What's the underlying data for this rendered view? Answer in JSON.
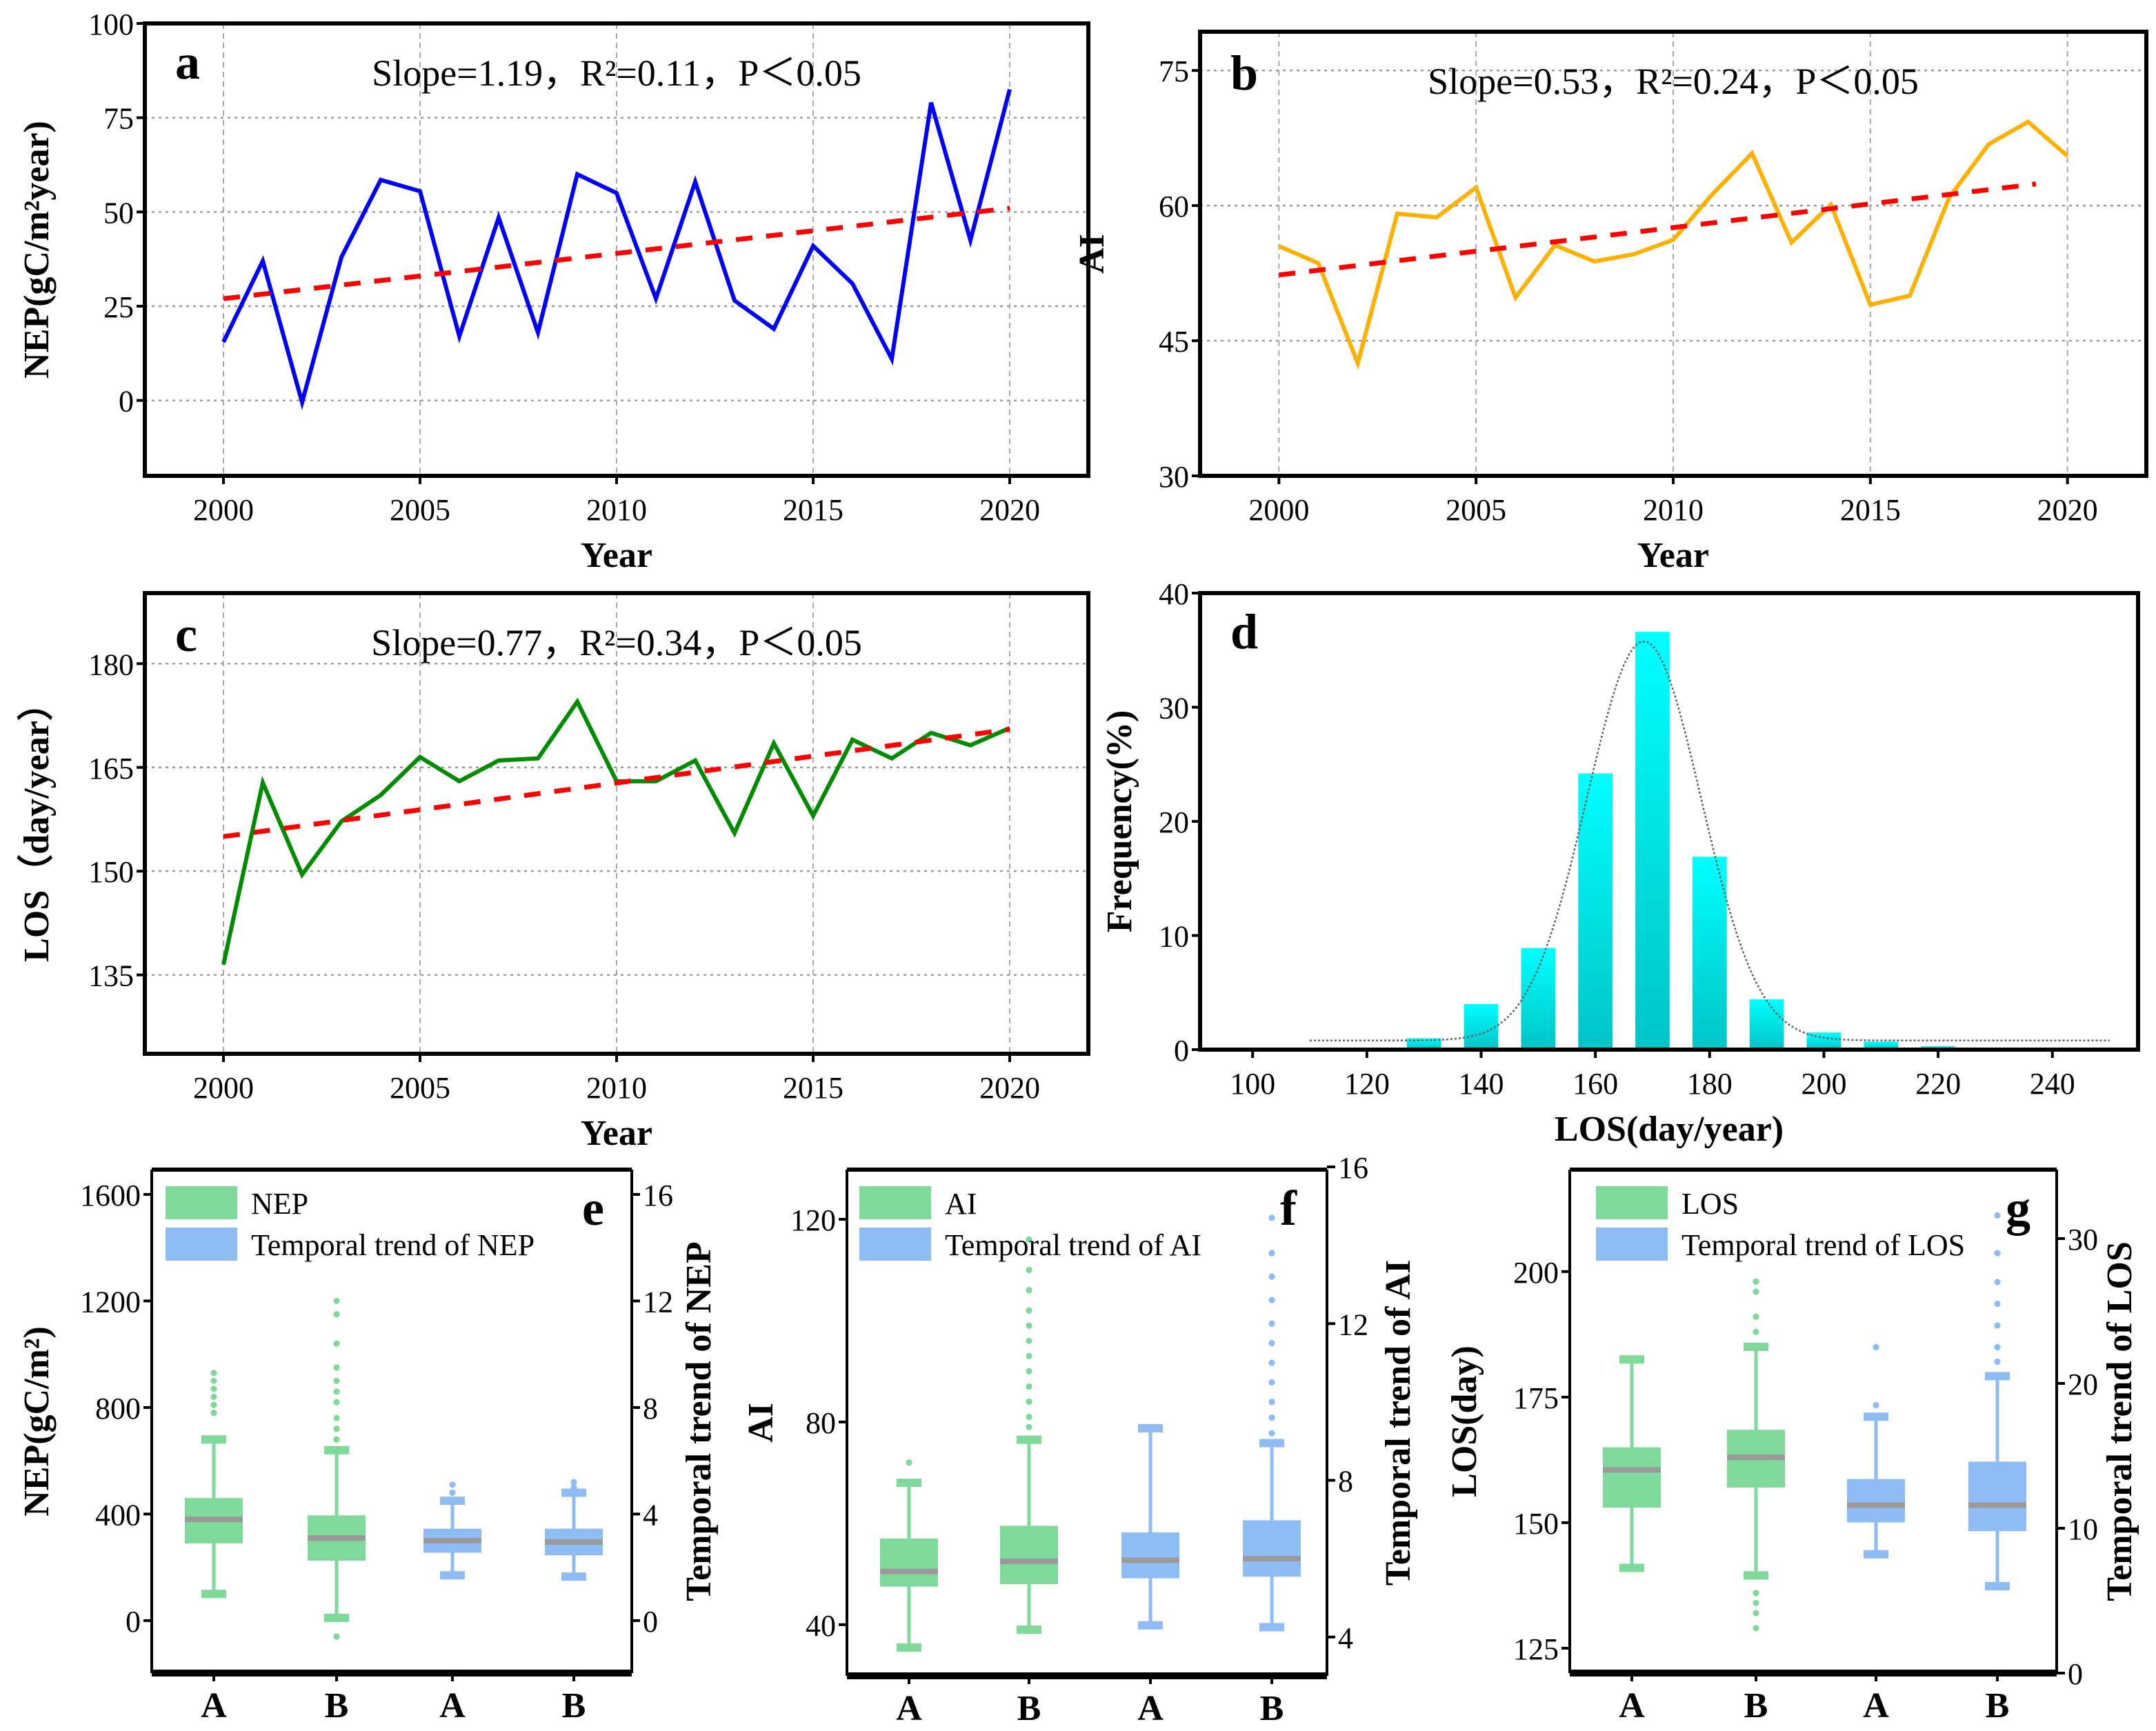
{
  "colors": {
    "nep": "#0000ff",
    "ai": "#ffb000",
    "los": "#008c00",
    "trend": "#ff0000",
    "hist": "#00f0f0",
    "green_box": "#7fd99a",
    "blue_box": "#8fbcf5",
    "median": "#9a9a9a"
  },
  "chart_data": [
    {
      "type": "line",
      "panel_label": "a",
      "stats": "Slope=1.19，R²=0.11，P＜0.05",
      "xlabel": "Year",
      "ylabel": "NEP(gC/m²year)",
      "xlim": [
        1998,
        2022
      ],
      "ylim": [
        -20,
        100
      ],
      "xticks": [
        2000,
        2005,
        2010,
        2015,
        2020
      ],
      "yticks": [
        0,
        25,
        50,
        75,
        100
      ],
      "grid": true,
      "x": [
        2000,
        2001,
        2002,
        2003,
        2004,
        2005,
        2006,
        2007,
        2008,
        2009,
        2010,
        2011,
        2012,
        2013,
        2014,
        2015,
        2016,
        2017,
        2018,
        2019,
        2020
      ],
      "y": [
        15.5,
        37,
        -0.5,
        38,
        58.5,
        55.5,
        17,
        48.5,
        18,
        60,
        55,
        27,
        58,
        26.5,
        19,
        41,
        31,
        11,
        79,
        42.5,
        82.5
      ],
      "trend": {
        "x": [
          2000,
          2020
        ],
        "y": [
          27,
          51
        ]
      },
      "color": "#0000ff"
    },
    {
      "type": "line",
      "panel_label": "b",
      "stats": "Slope=0.53，R²=0.24，P＜0.05",
      "xlabel": "Year",
      "ylabel": "AI",
      "xlim": [
        1998,
        2022
      ],
      "ylim": [
        30,
        79.3
      ],
      "xticks": [
        2000,
        2005,
        2010,
        2015,
        2020
      ],
      "yticks": [
        30,
        45,
        60,
        75
      ],
      "grid": true,
      "x": [
        2000,
        2001,
        2002,
        2003,
        2004,
        2005,
        2006,
        2007,
        2008,
        2009,
        2010,
        2011,
        2012,
        2013,
        2014,
        2015,
        2016,
        2017,
        2018,
        2019,
        2020
      ],
      "y": [
        55.5,
        53.6,
        42.5,
        59.1,
        58.7,
        62,
        49.8,
        55.6,
        53.8,
        54.6,
        56.2,
        61.3,
        65.8,
        55.9,
        60.1,
        49,
        50,
        60.9,
        66.8,
        69.3,
        65.5
      ],
      "trend": {
        "x": [
          2000,
          2019.2
        ],
        "y": [
          52.3,
          62.4
        ]
      },
      "color": "#ffb000"
    },
    {
      "type": "line",
      "panel_label": "c",
      "stats": "Slope=0.77，R²=0.34，P＜0.05",
      "xlabel": "Year",
      "ylabel": "LOS（day/year）",
      "xlim": [
        1998,
        2022
      ],
      "ylim": [
        123.6,
        190.2
      ],
      "xticks": [
        2000,
        2005,
        2010,
        2015,
        2020
      ],
      "yticks": [
        135,
        150,
        165,
        180
      ],
      "grid": true,
      "x": [
        2000,
        2001,
        2002,
        2003,
        2004,
        2005,
        2006,
        2007,
        2008,
        2009,
        2010,
        2011,
        2012,
        2013,
        2014,
        2015,
        2016,
        2017,
        2018,
        2019,
        2020
      ],
      "y": [
        136.5,
        162.8,
        149.5,
        157.2,
        161,
        166.5,
        163,
        166,
        166.3,
        174.5,
        163,
        163,
        166,
        155.5,
        168.5,
        158,
        169,
        166.3,
        170,
        168.2,
        170.7
      ],
      "trend": {
        "x": [
          2000,
          2020
        ],
        "y": [
          155,
          170.5
        ]
      },
      "color": "#008c00"
    },
    {
      "type": "bar",
      "panel_label": "d",
      "xlabel": "LOS(day/year)",
      "ylabel": "Frequency(%)",
      "xlim": [
        90.8,
        255
      ],
      "ylim": [
        0,
        40
      ],
      "xticks": [
        100,
        120,
        140,
        160,
        180,
        200,
        220,
        240
      ],
      "yticks": [
        0,
        10,
        20,
        30,
        40
      ],
      "grid": false,
      "x": [
        120,
        130,
        140,
        150,
        160,
        170,
        180,
        190,
        200,
        210,
        220,
        230
      ],
      "y": [
        0.1,
        1.0,
        4.0,
        8.9,
        24.2,
        36.6,
        16.9,
        4.4,
        1.5,
        0.7,
        0.3,
        0.1
      ],
      "fit": {
        "type": "gaussian",
        "baseline": 0.8,
        "amplitude": 35,
        "mean": 168.5,
        "sigma": 10,
        "x_range": [
          110,
          250
        ]
      }
    },
    {
      "type": "box",
      "panel_label": "e",
      "ylabel_left": "NEP(gC/m²)",
      "ylabel_right": "Temporal trend of NEP",
      "ylim_left": [
        -197,
        1693
      ],
      "ylim_right": [
        -1.97,
        16.93
      ],
      "yticks_left": [
        0,
        400,
        800,
        1200,
        1600
      ],
      "yticks_right": [
        0,
        4,
        8,
        12,
        16
      ],
      "categories": [
        "A",
        "B",
        "A",
        "B"
      ],
      "legend": [
        "NEP",
        "Temporal trend of NEP"
      ],
      "boxes": [
        {
          "axis": "left",
          "color": "#7fd99a",
          "min": 100,
          "q1": 290,
          "median": 380,
          "q3": 460,
          "max": 680,
          "outliers": [
            780,
            810,
            840,
            870,
            900,
            930
          ]
        },
        {
          "axis": "left",
          "color": "#7fd99a",
          "min": 10,
          "q1": 225,
          "median": 310,
          "q3": 395,
          "max": 640,
          "outliers": [
            -60,
            680,
            720,
            760,
            820,
            860,
            900,
            950,
            1040,
            1150,
            1200
          ]
        },
        {
          "axis": "right",
          "color": "#8fbcf5",
          "min": 1.7,
          "q1": 2.55,
          "median": 3.0,
          "q3": 3.45,
          "max": 4.5,
          "outliers": [
            4.8,
            5.1
          ]
        },
        {
          "axis": "right",
          "color": "#8fbcf5",
          "min": 1.65,
          "q1": 2.45,
          "median": 2.95,
          "q3": 3.45,
          "max": 4.8,
          "outliers": [
            5.0,
            5.2
          ]
        }
      ]
    },
    {
      "type": "box",
      "panel_label": "f",
      "ylabel_left": "AI",
      "ylabel_right": "Temporal trend of AI",
      "ylim_left": [
        29.9,
        129.8
      ],
      "ylim_right": [
        3.01,
        15.93
      ],
      "yticks_left": [
        40,
        80,
        120
      ],
      "yticks_right": [
        4,
        8,
        12,
        16
      ],
      "categories": [
        "A",
        "B",
        "A",
        "B"
      ],
      "legend": [
        "AI",
        "Temporal trend of AI"
      ],
      "boxes": [
        {
          "axis": "left",
          "color": "#7fd99a",
          "min": 35.5,
          "q1": 47.5,
          "median": 50.5,
          "q3": 57,
          "max": 68,
          "outliers": [
            72
          ]
        },
        {
          "axis": "left",
          "color": "#7fd99a",
          "min": 39,
          "q1": 48,
          "median": 52.5,
          "q3": 59.5,
          "max": 76.5,
          "outliers": [
            79,
            81,
            84,
            87,
            90,
            93,
            96,
            99,
            102,
            106,
            110,
            116
          ]
        },
        {
          "axis": "right",
          "color": "#8fbcf5",
          "min": 4.3,
          "q1": 5.5,
          "median": 5.96,
          "q3": 6.67,
          "max": 9.33,
          "outliers": []
        },
        {
          "axis": "right",
          "color": "#8fbcf5",
          "min": 4.25,
          "q1": 5.54,
          "median": 6.0,
          "q3": 6.98,
          "max": 8.95,
          "outliers": [
            9.2,
            9.6,
            10.0,
            10.5,
            11.0,
            11.5,
            12.0,
            12.6,
            13.2,
            13.8,
            14.7
          ]
        }
      ]
    },
    {
      "type": "box",
      "panel_label": "g",
      "ylabel_left": "LOS(day)",
      "ylabel_right": "Temporal trend of LOS",
      "ylim_left": [
        120.05,
        220.3
      ],
      "ylim_right": [
        0,
        34.76
      ],
      "yticks_left": [
        125,
        150,
        175,
        200
      ],
      "yticks_right": [
        0,
        10,
        20,
        30
      ],
      "categories": [
        "A",
        "B",
        "A",
        "B"
      ],
      "legend": [
        "LOS",
        "Temporal trend of LOS"
      ],
      "boxes": [
        {
          "axis": "left",
          "color": "#7fd99a",
          "min": 141,
          "q1": 153,
          "median": 160.5,
          "q3": 165,
          "max": 182.5,
          "outliers": []
        },
        {
          "axis": "left",
          "color": "#7fd99a",
          "min": 139.5,
          "q1": 157,
          "median": 163,
          "q3": 168.5,
          "max": 185,
          "outliers": [
            129,
            132,
            134,
            136,
            188,
            191,
            196,
            198
          ]
        },
        {
          "axis": "right",
          "color": "#8fbcf5",
          "min": 8.2,
          "q1": 10.4,
          "median": 11.6,
          "q3": 13.4,
          "max": 17.7,
          "outliers": [
            18.5,
            22.5
          ]
        },
        {
          "axis": "right",
          "color": "#8fbcf5",
          "min": 6.0,
          "q1": 9.8,
          "median": 11.6,
          "q3": 14.6,
          "max": 20.5,
          "outliers": [
            21.5,
            22.5,
            24,
            25.5,
            27,
            29,
            31.6
          ]
        }
      ]
    }
  ]
}
